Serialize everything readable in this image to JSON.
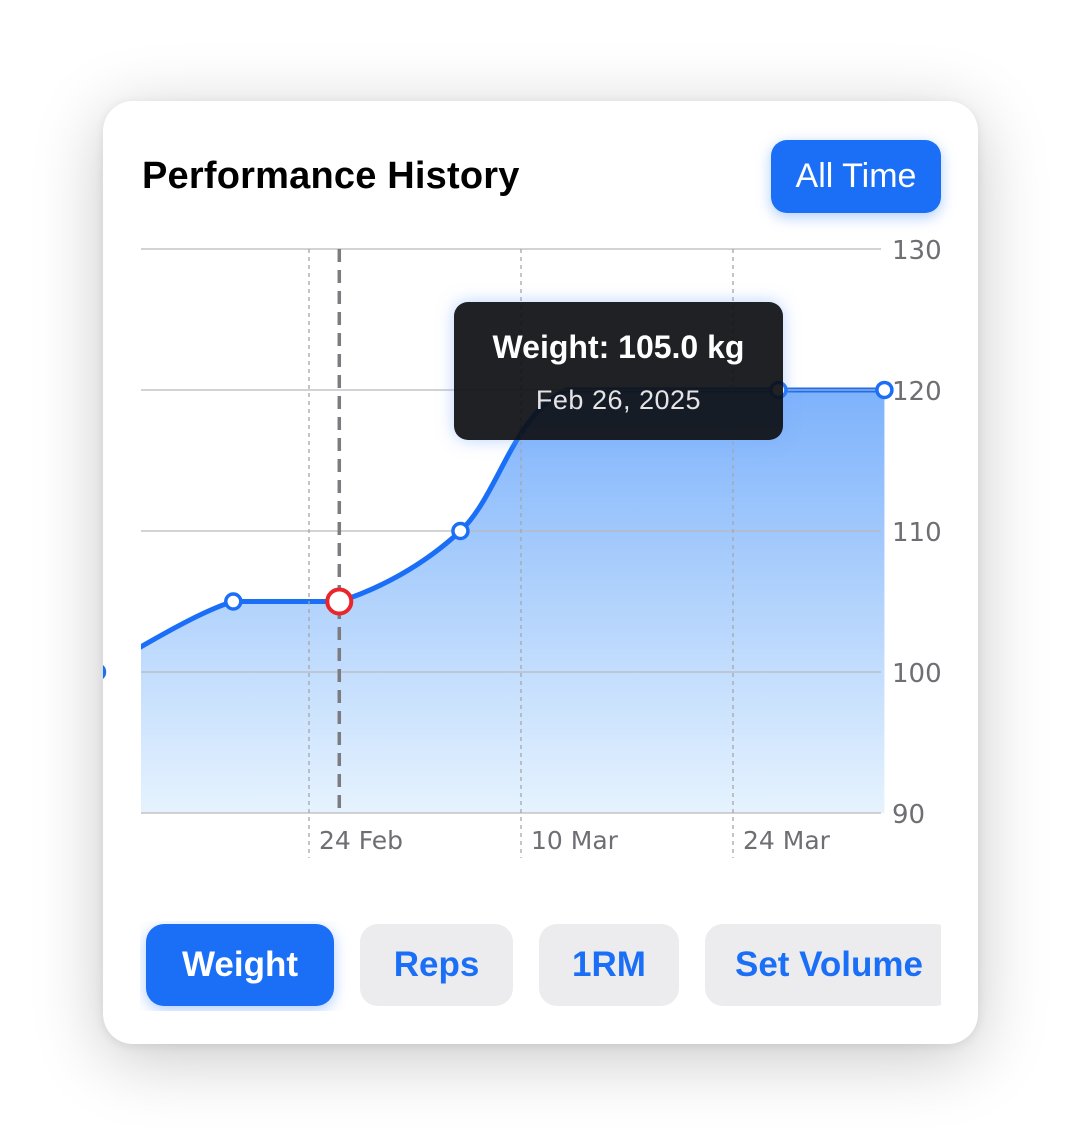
{
  "header": {
    "title": "Performance History",
    "range_label": "All Time"
  },
  "colors": {
    "accent": "#1a6ff6",
    "line": "#1a6ff6",
    "area_top": "#7db2fb",
    "area_bottom": "#e6f3fe",
    "selected_marker": "#e8262b",
    "tooltip_bg": "#0e1014",
    "segment_inactive_bg": "#ececee"
  },
  "tooltip": {
    "value": "Weight: 105.0 kg",
    "date": "Feb 26, 2025"
  },
  "chart_data": {
    "type": "area",
    "x": [
      "2025-02-10",
      "2025-02-19",
      "2025-02-26",
      "2025-03-06",
      "2025-03-13",
      "2025-03-27",
      "2025-04-03"
    ],
    "values": [
      100,
      105,
      105,
      110,
      120,
      120,
      120
    ],
    "markers": [
      true,
      true,
      true,
      true,
      false,
      true,
      true
    ],
    "selected_index": 2,
    "ylim": [
      90,
      130
    ],
    "yticks": [
      "90",
      "100",
      "110",
      "120",
      "130"
    ],
    "xticks": [
      {
        "date": "2025-02-24",
        "label": "24 Feb"
      },
      {
        "date": "2025-03-10",
        "label": "10 Mar"
      },
      {
        "date": "2025-03-24",
        "label": "24 Mar"
      }
    ],
    "y_axis_position": "right",
    "grid": true
  },
  "segments": [
    {
      "label": "Weight",
      "active": true
    },
    {
      "label": "Reps",
      "active": false
    },
    {
      "label": "1RM",
      "active": false
    },
    {
      "label": "Set Volume",
      "active": false
    }
  ]
}
